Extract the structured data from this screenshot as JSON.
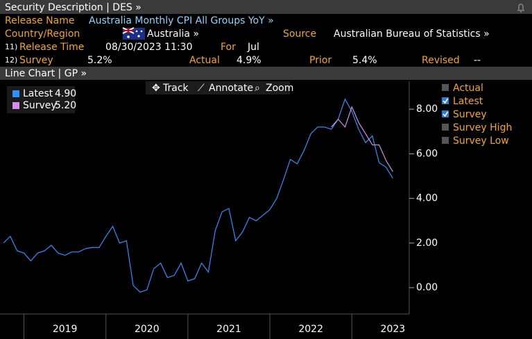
{
  "header": {
    "title": "Security Description | DES »"
  },
  "release": {
    "name_label": "Release Name",
    "name": "Australia Monthly CPI All Groups YoY »",
    "country_label": "Country/Region",
    "country": "Australia »",
    "source_label": "Source",
    "source": "Australian Bureau of Statistics »",
    "time_num": "11)",
    "time_label": "Release Time",
    "time": "08/30/2023 11:30",
    "for_label": "For",
    "for": "Jul",
    "survey_num": "12)",
    "survey_label": "Survey",
    "survey": "5.2%",
    "actual_label": "Actual",
    "actual": "4.9%",
    "prior_label": "Prior",
    "prior": "5.4%",
    "revised_label": "Revised",
    "revised": "--"
  },
  "chart_header": "Line Chart | GP »",
  "toolbar": [
    "Track",
    "Annotate",
    "Zoom"
  ],
  "legend_panel": [
    {
      "label": "Actual",
      "checked": false
    },
    {
      "label": "Latest",
      "checked": true
    },
    {
      "label": "Survey",
      "checked": true
    },
    {
      "label": "Survey High",
      "checked": false
    },
    {
      "label": "Survey Low",
      "checked": false
    }
  ],
  "chart_data": {
    "type": "line",
    "x": [
      2018.75,
      2018.833,
      2018.917,
      2019,
      2019.083,
      2019.167,
      2019.25,
      2019.333,
      2019.417,
      2019.5,
      2019.583,
      2019.667,
      2019.75,
      2019.833,
      2019.917,
      2020,
      2020.083,
      2020.167,
      2020.25,
      2020.333,
      2020.417,
      2020.5,
      2020.583,
      2020.667,
      2020.75,
      2020.833,
      2020.917,
      2021,
      2021.083,
      2021.167,
      2021.25,
      2021.333,
      2021.417,
      2021.5,
      2021.583,
      2021.667,
      2021.75,
      2021.833,
      2021.917,
      2022,
      2022.083,
      2022.167,
      2022.25,
      2022.333,
      2022.417,
      2022.5,
      2022.583,
      2022.667,
      2022.75,
      2022.833,
      2022.917,
      2023,
      2023.083,
      2023.167,
      2023.25,
      2023.333,
      2023.417,
      2023.5
    ],
    "series": [
      {
        "name": "Latest",
        "color": "#2f8fff",
        "values": [
          2.0,
          2.3,
          1.65,
          1.55,
          1.2,
          1.55,
          1.65,
          1.9,
          1.55,
          1.45,
          1.6,
          1.6,
          1.75,
          1.8,
          1.8,
          2.3,
          2.75,
          2.0,
          2.1,
          0.1,
          -0.2,
          -0.1,
          0.85,
          1.1,
          0.45,
          0.55,
          1.1,
          0.3,
          0.4,
          1.1,
          0.7,
          2.55,
          3.4,
          3.55,
          2.1,
          2.5,
          3.15,
          3.0,
          3.25,
          3.5,
          4.0,
          4.85,
          5.75,
          5.55,
          6.15,
          6.9,
          7.2,
          7.2,
          7.1,
          7.55,
          8.45,
          7.9,
          7.1,
          6.5,
          6.8,
          5.6,
          5.4,
          4.9
        ]
      },
      {
        "name": "Survey",
        "color": "#d58cf0",
        "values": [
          null,
          null,
          null,
          null,
          null,
          null,
          null,
          null,
          null,
          null,
          null,
          null,
          null,
          null,
          null,
          null,
          null,
          null,
          null,
          null,
          null,
          null,
          null,
          null,
          null,
          null,
          null,
          null,
          null,
          null,
          null,
          null,
          null,
          null,
          null,
          null,
          null,
          null,
          null,
          null,
          null,
          null,
          null,
          null,
          null,
          null,
          null,
          null,
          7.2,
          7.55,
          7.2,
          8.1,
          7.4,
          6.9,
          6.4,
          6.4,
          5.7,
          5.2
        ]
      }
    ],
    "legend_values": [
      "4.90",
      "5.20"
    ],
    "xlim": [
      2018.75,
      2023.7
    ],
    "xticks": [
      2019,
      2020,
      2021,
      2022,
      2023
    ],
    "ylim": [
      -1.18,
      9.25
    ],
    "yticks": [
      {
        "value": 0,
        "label": "0.00"
      },
      {
        "value": 2,
        "label": "2.00"
      },
      {
        "value": 4,
        "label": "4.00"
      },
      {
        "value": 6,
        "label": "6.00"
      },
      {
        "value": 8,
        "label": "8.00"
      }
    ]
  }
}
